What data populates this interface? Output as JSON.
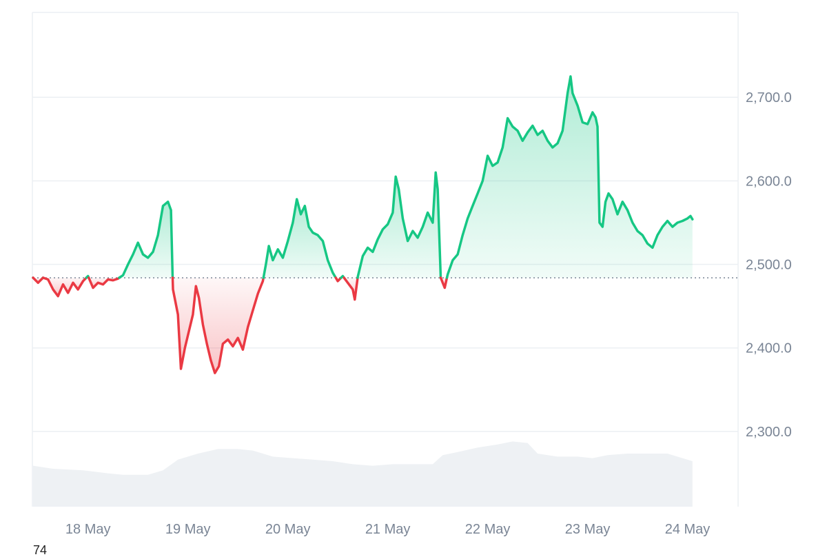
{
  "chart_data": {
    "type": "area",
    "baseline": 2484,
    "ylim": [
      2210,
      2800
    ],
    "grid": true,
    "colors": {
      "up": "#16c784",
      "down": "#ea3943",
      "volume": "#eef1f4",
      "grid": "#eceff3"
    },
    "y_ticks": [
      {
        "value": 2300,
        "label": "2,300.0"
      },
      {
        "value": 2400,
        "label": "2,400.0"
      },
      {
        "value": 2500,
        "label": "2,500.0"
      },
      {
        "value": 2600,
        "label": "2,600.0"
      },
      {
        "value": 2700,
        "label": "2,700.0"
      }
    ],
    "x_range": [
      0,
      7.05
    ],
    "x_ticks": [
      {
        "value": 0.55,
        "label": "18 May"
      },
      {
        "value": 1.55,
        "label": "19 May"
      },
      {
        "value": 2.55,
        "label": "20 May"
      },
      {
        "value": 3.55,
        "label": "21 May"
      },
      {
        "value": 4.55,
        "label": "22 May"
      },
      {
        "value": 5.55,
        "label": "23 May"
      },
      {
        "value": 6.55,
        "label": "24 May"
      }
    ],
    "price": [
      [
        0.0,
        2484
      ],
      [
        0.05,
        2478
      ],
      [
        0.1,
        2484
      ],
      [
        0.15,
        2482
      ],
      [
        0.2,
        2470
      ],
      [
        0.25,
        2462
      ],
      [
        0.3,
        2476
      ],
      [
        0.35,
        2466
      ],
      [
        0.4,
        2478
      ],
      [
        0.45,
        2470
      ],
      [
        0.5,
        2480
      ],
      [
        0.55,
        2486
      ],
      [
        0.6,
        2472
      ],
      [
        0.65,
        2478
      ],
      [
        0.7,
        2476
      ],
      [
        0.75,
        2482
      ],
      [
        0.8,
        2481
      ],
      [
        0.85,
        2483
      ],
      [
        0.9,
        2487
      ],
      [
        0.95,
        2500
      ],
      [
        1.0,
        2512
      ],
      [
        1.05,
        2526
      ],
      [
        1.1,
        2512
      ],
      [
        1.15,
        2508
      ],
      [
        1.2,
        2515
      ],
      [
        1.25,
        2535
      ],
      [
        1.3,
        2570
      ],
      [
        1.35,
        2575
      ],
      [
        1.38,
        2565
      ],
      [
        1.4,
        2470
      ],
      [
        1.45,
        2440
      ],
      [
        1.48,
        2375
      ],
      [
        1.52,
        2400
      ],
      [
        1.56,
        2420
      ],
      [
        1.6,
        2440
      ],
      [
        1.63,
        2474
      ],
      [
        1.66,
        2460
      ],
      [
        1.7,
        2428
      ],
      [
        1.74,
        2405
      ],
      [
        1.78,
        2385
      ],
      [
        1.82,
        2370
      ],
      [
        1.86,
        2378
      ],
      [
        1.9,
        2405
      ],
      [
        1.95,
        2410
      ],
      [
        2.0,
        2402
      ],
      [
        2.05,
        2412
      ],
      [
        2.1,
        2398
      ],
      [
        2.15,
        2425
      ],
      [
        2.2,
        2445
      ],
      [
        2.25,
        2465
      ],
      [
        2.3,
        2480
      ],
      [
        2.33,
        2500
      ],
      [
        2.36,
        2522
      ],
      [
        2.4,
        2505
      ],
      [
        2.45,
        2518
      ],
      [
        2.5,
        2508
      ],
      [
        2.55,
        2528
      ],
      [
        2.6,
        2550
      ],
      [
        2.64,
        2578
      ],
      [
        2.68,
        2560
      ],
      [
        2.72,
        2570
      ],
      [
        2.76,
        2545
      ],
      [
        2.8,
        2538
      ],
      [
        2.85,
        2535
      ],
      [
        2.9,
        2528
      ],
      [
        2.95,
        2505
      ],
      [
        3.0,
        2490
      ],
      [
        3.05,
        2480
      ],
      [
        3.1,
        2486
      ],
      [
        3.15,
        2478
      ],
      [
        3.2,
        2470
      ],
      [
        3.22,
        2458
      ],
      [
        3.25,
        2485
      ],
      [
        3.3,
        2510
      ],
      [
        3.35,
        2520
      ],
      [
        3.4,
        2515
      ],
      [
        3.45,
        2530
      ],
      [
        3.5,
        2542
      ],
      [
        3.55,
        2548
      ],
      [
        3.6,
        2562
      ],
      [
        3.63,
        2605
      ],
      [
        3.66,
        2590
      ],
      [
        3.7,
        2555
      ],
      [
        3.75,
        2528
      ],
      [
        3.8,
        2540
      ],
      [
        3.85,
        2532
      ],
      [
        3.9,
        2545
      ],
      [
        3.95,
        2562
      ],
      [
        4.0,
        2550
      ],
      [
        4.03,
        2610
      ],
      [
        4.05,
        2590
      ],
      [
        4.08,
        2484
      ],
      [
        4.1,
        2478
      ],
      [
        4.12,
        2472
      ],
      [
        4.15,
        2488
      ],
      [
        4.2,
        2505
      ],
      [
        4.25,
        2512
      ],
      [
        4.3,
        2535
      ],
      [
        4.35,
        2555
      ],
      [
        4.4,
        2570
      ],
      [
        4.45,
        2585
      ],
      [
        4.5,
        2600
      ],
      [
        4.55,
        2630
      ],
      [
        4.6,
        2618
      ],
      [
        4.65,
        2622
      ],
      [
        4.7,
        2640
      ],
      [
        4.75,
        2675
      ],
      [
        4.8,
        2665
      ],
      [
        4.85,
        2660
      ],
      [
        4.9,
        2648
      ],
      [
        4.95,
        2658
      ],
      [
        5.0,
        2666
      ],
      [
        5.05,
        2655
      ],
      [
        5.1,
        2660
      ],
      [
        5.15,
        2648
      ],
      [
        5.2,
        2640
      ],
      [
        5.25,
        2645
      ],
      [
        5.3,
        2660
      ],
      [
        5.35,
        2705
      ],
      [
        5.38,
        2725
      ],
      [
        5.4,
        2705
      ],
      [
        5.45,
        2690
      ],
      [
        5.5,
        2670
      ],
      [
        5.55,
        2668
      ],
      [
        5.6,
        2682
      ],
      [
        5.63,
        2676
      ],
      [
        5.65,
        2665
      ],
      [
        5.67,
        2550
      ],
      [
        5.7,
        2545
      ],
      [
        5.73,
        2575
      ],
      [
        5.76,
        2585
      ],
      [
        5.8,
        2578
      ],
      [
        5.85,
        2560
      ],
      [
        5.9,
        2575
      ],
      [
        5.95,
        2565
      ],
      [
        6.0,
        2550
      ],
      [
        6.05,
        2540
      ],
      [
        6.1,
        2535
      ],
      [
        6.15,
        2525
      ],
      [
        6.2,
        2520
      ],
      [
        6.25,
        2535
      ],
      [
        6.3,
        2545
      ],
      [
        6.35,
        2552
      ],
      [
        6.4,
        2545
      ],
      [
        6.45,
        2550
      ],
      [
        6.5,
        2552
      ],
      [
        6.55,
        2555
      ],
      [
        6.58,
        2558
      ],
      [
        6.6,
        2554
      ]
    ],
    "volume": [
      [
        0.0,
        0.54
      ],
      [
        0.2,
        0.5
      ],
      [
        0.5,
        0.48
      ],
      [
        0.75,
        0.44
      ],
      [
        0.9,
        0.42
      ],
      [
        1.15,
        0.42
      ],
      [
        1.3,
        0.48
      ],
      [
        1.45,
        0.62
      ],
      [
        1.65,
        0.7
      ],
      [
        1.85,
        0.76
      ],
      [
        2.05,
        0.76
      ],
      [
        2.2,
        0.74
      ],
      [
        2.4,
        0.66
      ],
      [
        2.6,
        0.64
      ],
      [
        2.8,
        0.62
      ],
      [
        3.0,
        0.6
      ],
      [
        3.2,
        0.56
      ],
      [
        3.4,
        0.54
      ],
      [
        3.6,
        0.56
      ],
      [
        3.8,
        0.56
      ],
      [
        4.0,
        0.56
      ],
      [
        4.1,
        0.68
      ],
      [
        4.25,
        0.72
      ],
      [
        4.45,
        0.78
      ],
      [
        4.65,
        0.82
      ],
      [
        4.8,
        0.86
      ],
      [
        4.95,
        0.84
      ],
      [
        5.05,
        0.7
      ],
      [
        5.25,
        0.66
      ],
      [
        5.45,
        0.66
      ],
      [
        5.6,
        0.64
      ],
      [
        5.75,
        0.68
      ],
      [
        5.95,
        0.7
      ],
      [
        6.15,
        0.7
      ],
      [
        6.35,
        0.7
      ],
      [
        6.5,
        0.64
      ],
      [
        6.6,
        0.6
      ]
    ]
  },
  "corner_text": "74"
}
